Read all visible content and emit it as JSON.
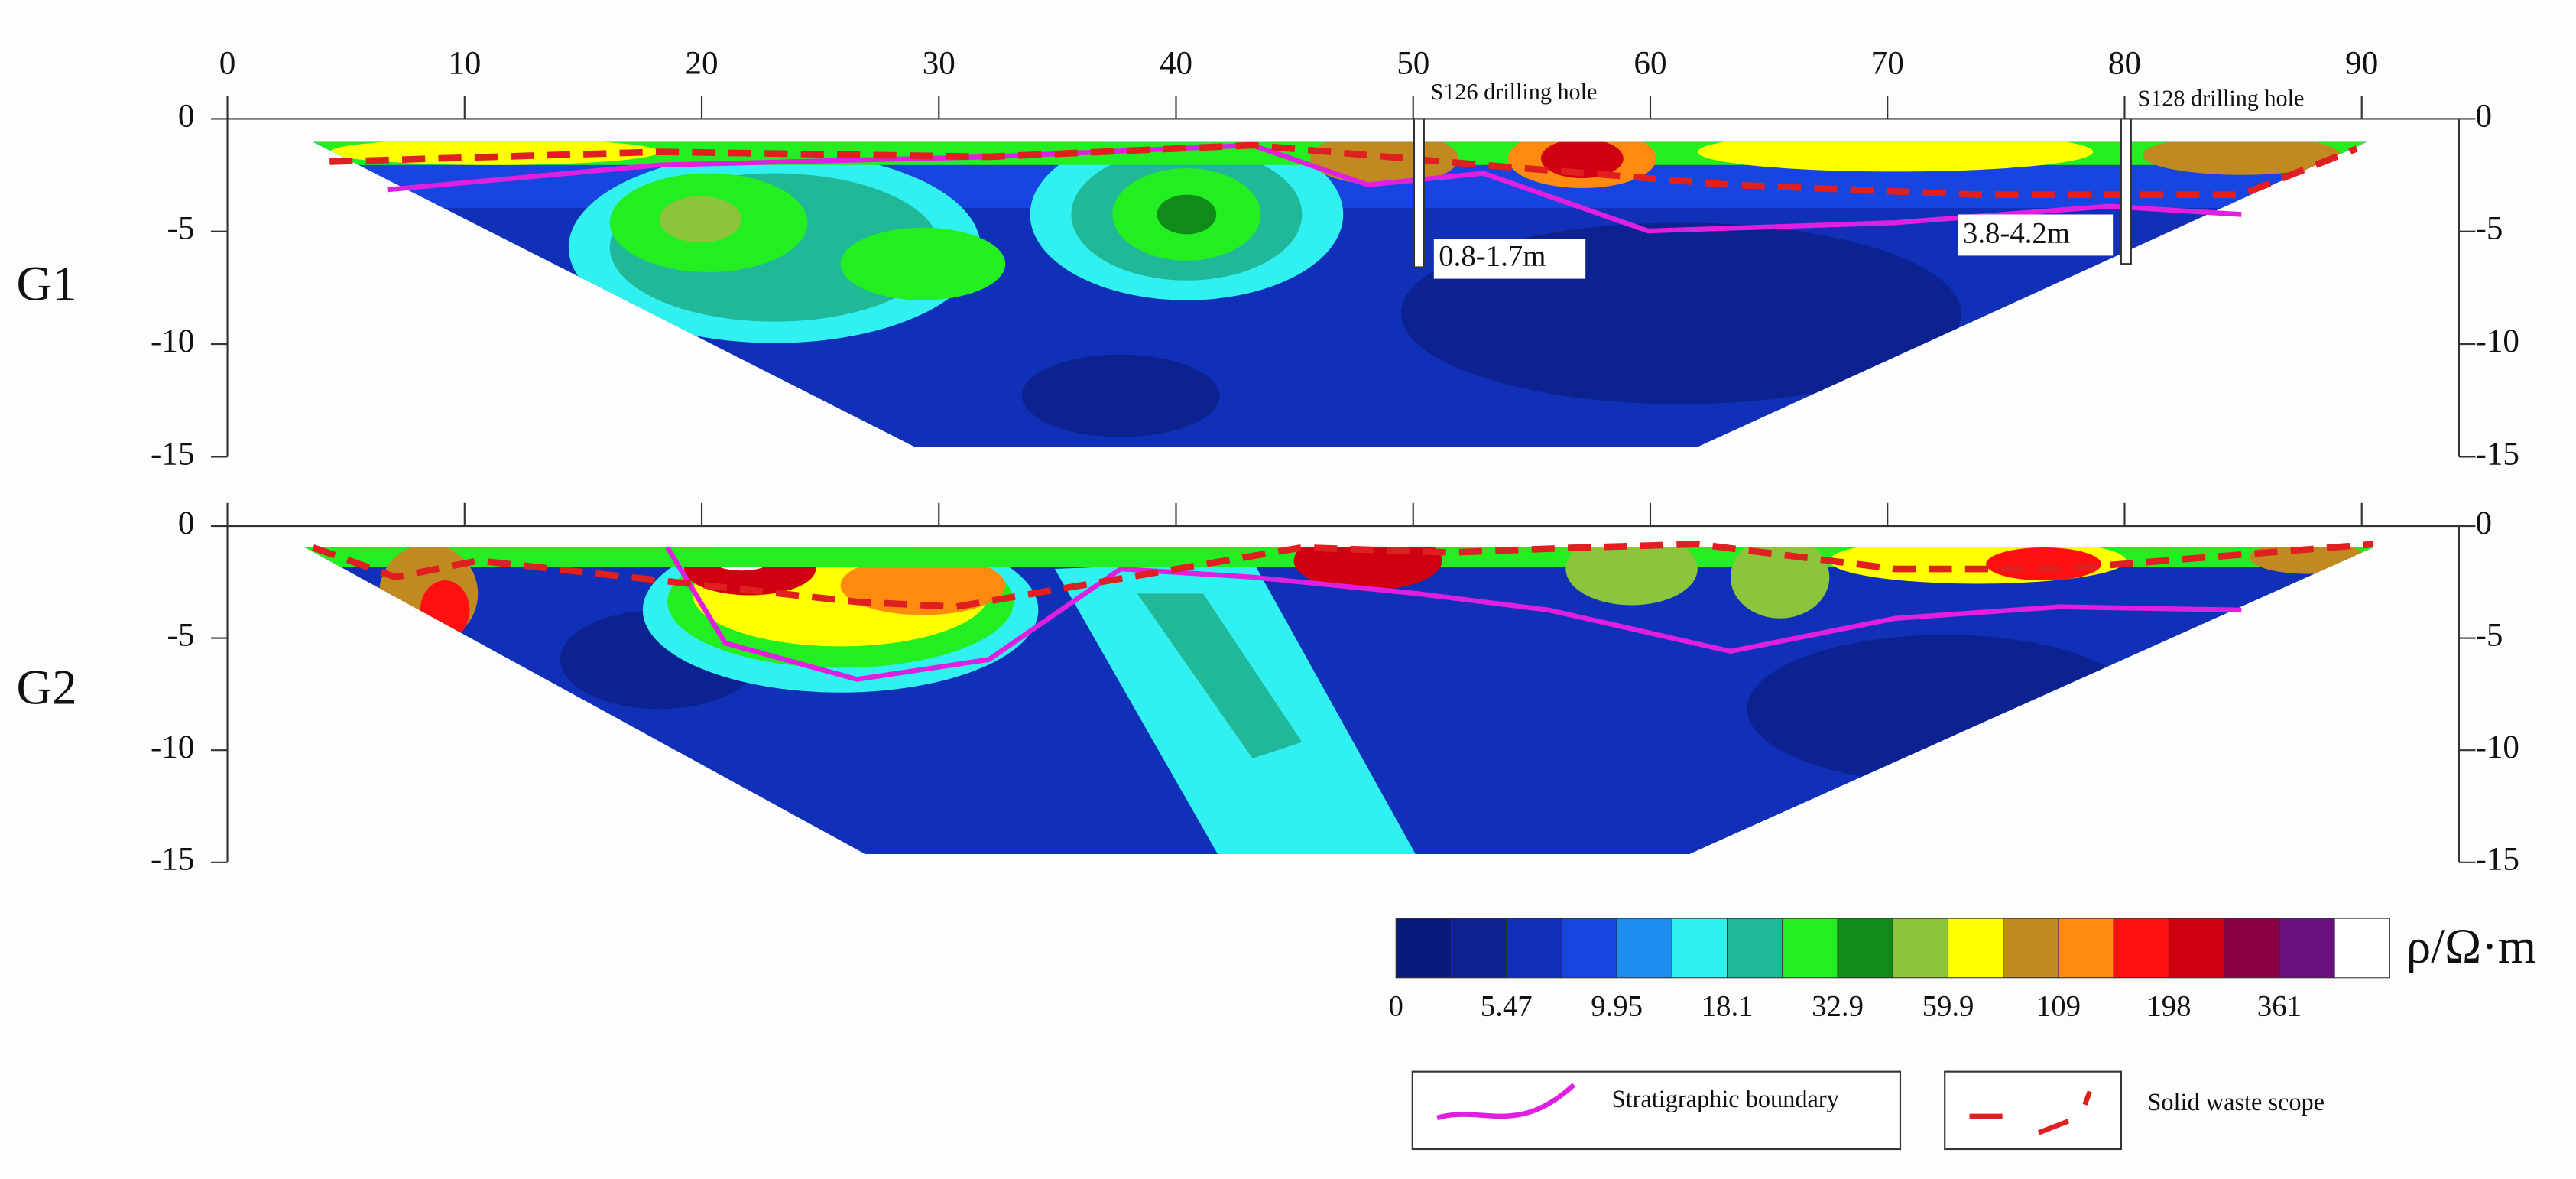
{
  "chart_data": [
    {
      "type": "section",
      "label": "G1",
      "xlim": [
        0,
        90
      ],
      "xticks": [
        0,
        10,
        20,
        30,
        40,
        50,
        60,
        70,
        80,
        90
      ],
      "show_xtick_labels": true,
      "ylim": [
        -15,
        0
      ],
      "yticks": [
        0,
        -5,
        -10,
        -15
      ],
      "annotations": [
        "S126 drilling hole",
        "S128 drilling hole",
        "0.8-1.7m",
        "3.8-4.2m"
      ]
    },
    {
      "type": "section",
      "label": "G2",
      "xlim": [
        0,
        90
      ],
      "xticks": [
        0,
        10,
        20,
        30,
        40,
        50,
        60,
        70,
        80,
        90
      ],
      "show_xtick_labels": false,
      "ylim": [
        -15,
        0
      ],
      "yticks": [
        0,
        -5,
        -10,
        -15
      ]
    },
    {
      "type": "colorbar",
      "title": "ρ/Ω·m",
      "colors": [
        "#0a1a7a",
        "#0c2290",
        "#1030b8",
        "#1844e0",
        "#1e8ef0",
        "#30f0f0",
        "#20b898",
        "#22ee22",
        "#108a18",
        "#8cc43c",
        "#ffff00",
        "#c08a20",
        "#ff8a10",
        "#ff1010",
        "#d00010",
        "#8a0040",
        "#6a1080",
        "#ffffff"
      ],
      "ticks": [
        0,
        5.47,
        9.95,
        18.1,
        32.9,
        59.9,
        109,
        198,
        361
      ]
    }
  ],
  "legend": [
    "Stratigraphic boundary",
    "Solid waste scope"
  ]
}
